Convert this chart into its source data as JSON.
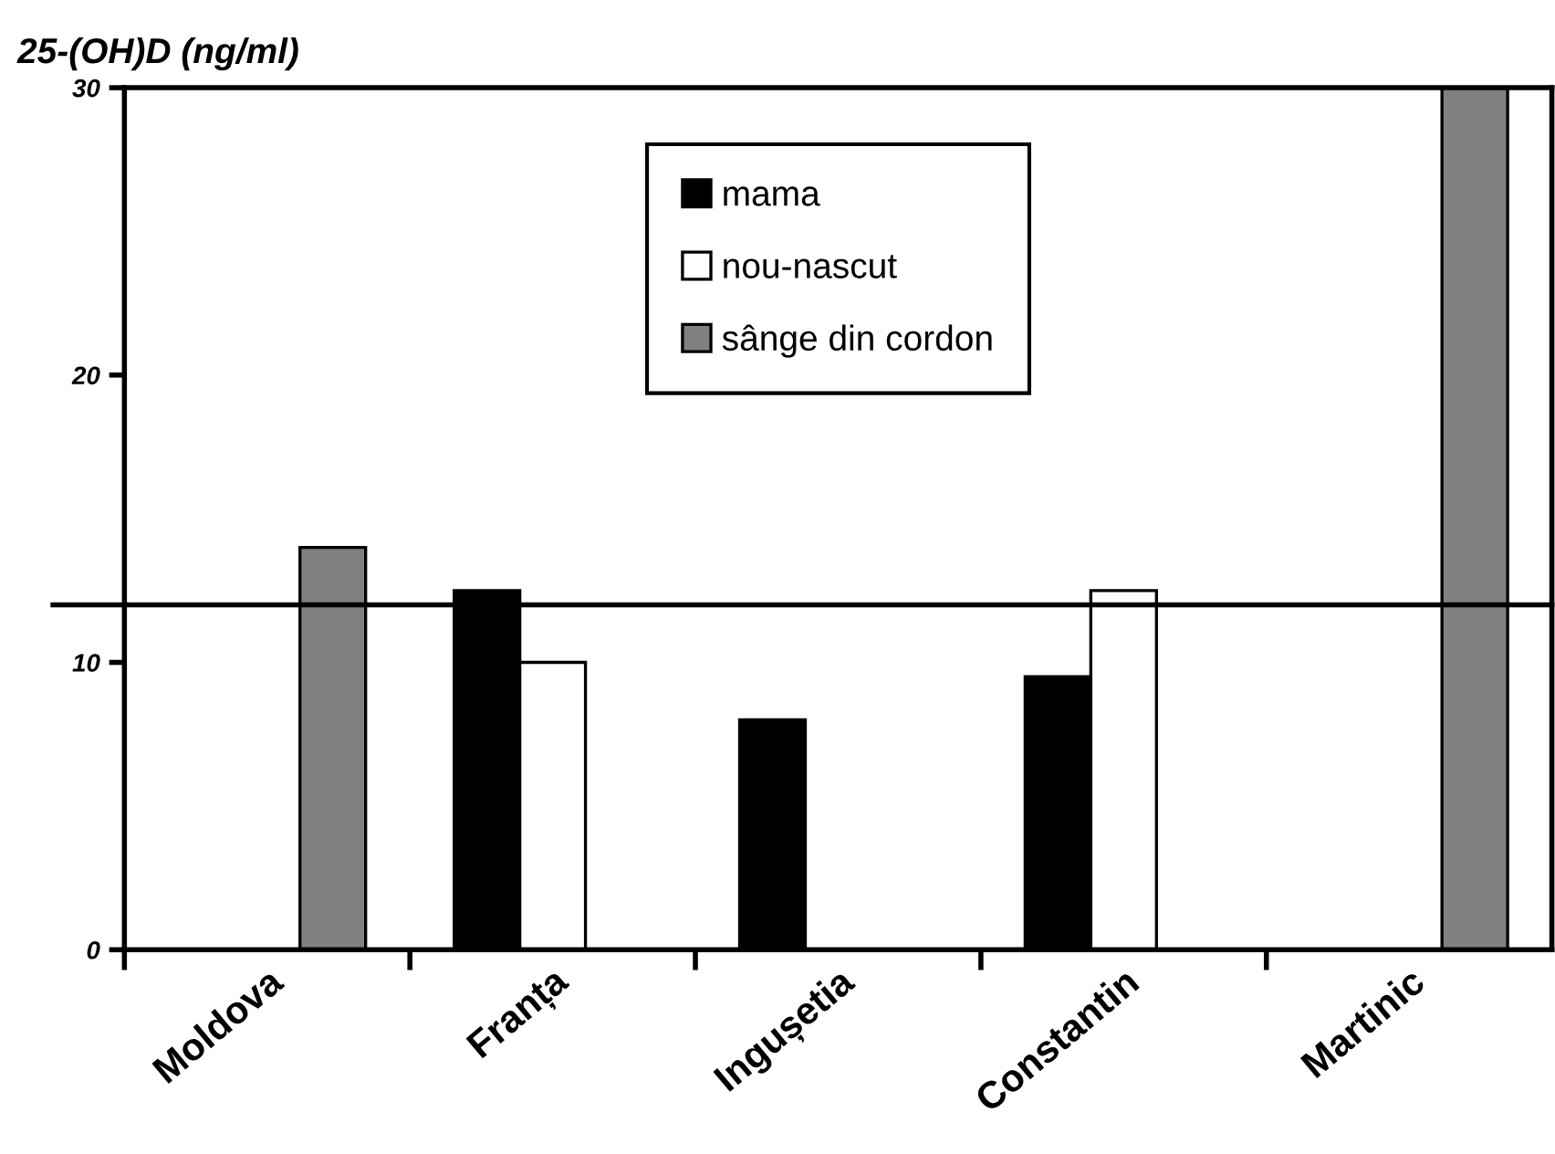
{
  "chart_data": {
    "type": "bar",
    "ylabel": "25-(OH)D (ng/ml)",
    "categories": [
      "Moldova",
      "Franța",
      "Ingușetia",
      "Constantin",
      "Martinic"
    ],
    "series": [
      {
        "name": "mama",
        "color": "#000000",
        "values": [
          null,
          12.5,
          8,
          9.5,
          null
        ]
      },
      {
        "name": "nou-nascut",
        "color": "#ffffff",
        "values": [
          null,
          10,
          null,
          12.5,
          null
        ]
      },
      {
        "name": "sânge din cordon",
        "color": "#808080",
        "values": [
          14,
          null,
          null,
          null,
          30
        ]
      }
    ],
    "ylim": [
      0,
      30
    ],
    "yticks": [
      0,
      10,
      20,
      30
    ],
    "ref_lines": [
      {
        "axis": "y",
        "value": 12
      }
    ],
    "legend": "top",
    "grid": false
  }
}
